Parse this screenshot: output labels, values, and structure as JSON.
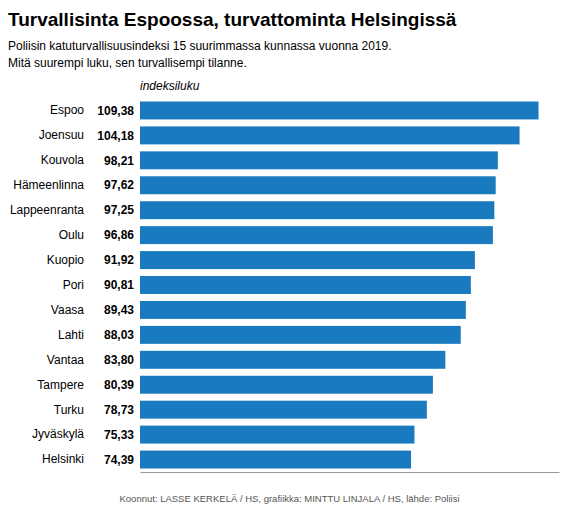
{
  "chart_data": {
    "type": "bar",
    "orientation": "horizontal",
    "title": "Turvallisinta Espoossa, turvattominta Helsingissä",
    "subtitle": "Poliisin katuturvallisuusindeksi 15 suurimmassa kunnassa vuonna 2019.\nMitä suurempi luku, sen turvallisempi tilanne.",
    "xlabel": "indeksiluku",
    "annotations": [
      "Koonnut: LASSE KERKELÄ / HS, grafiikka: MINTTU LINJALA / HS, lähde: Poliisi"
    ],
    "categories": [
      "Espoo",
      "Joensuu",
      "Kouvola",
      "Hämeenlinna",
      "Lappeenranta",
      "Oulu",
      "Kuopio",
      "Pori",
      "Vaasa",
      "Lahti",
      "Vantaa",
      "Tampere",
      "Turku",
      "Jyväskylä",
      "Helsinki"
    ],
    "values": [
      109.38,
      104.18,
      98.21,
      97.62,
      97.25,
      96.86,
      91.92,
      90.81,
      89.43,
      88.03,
      83.8,
      80.39,
      78.73,
      75.33,
      74.39
    ],
    "value_labels": [
      "109,38",
      "104,18",
      "98,21",
      "97,62",
      "97,25",
      "96,86",
      "91,92",
      "90,81",
      "89,43",
      "88,03",
      "83,80",
      "80,39",
      "78,73",
      "75,33",
      "74,39"
    ],
    "data_labels": true,
    "color": "#1a7abf",
    "xlim": [
      0,
      115
    ],
    "tick_labels": "y",
    "grid": false
  }
}
